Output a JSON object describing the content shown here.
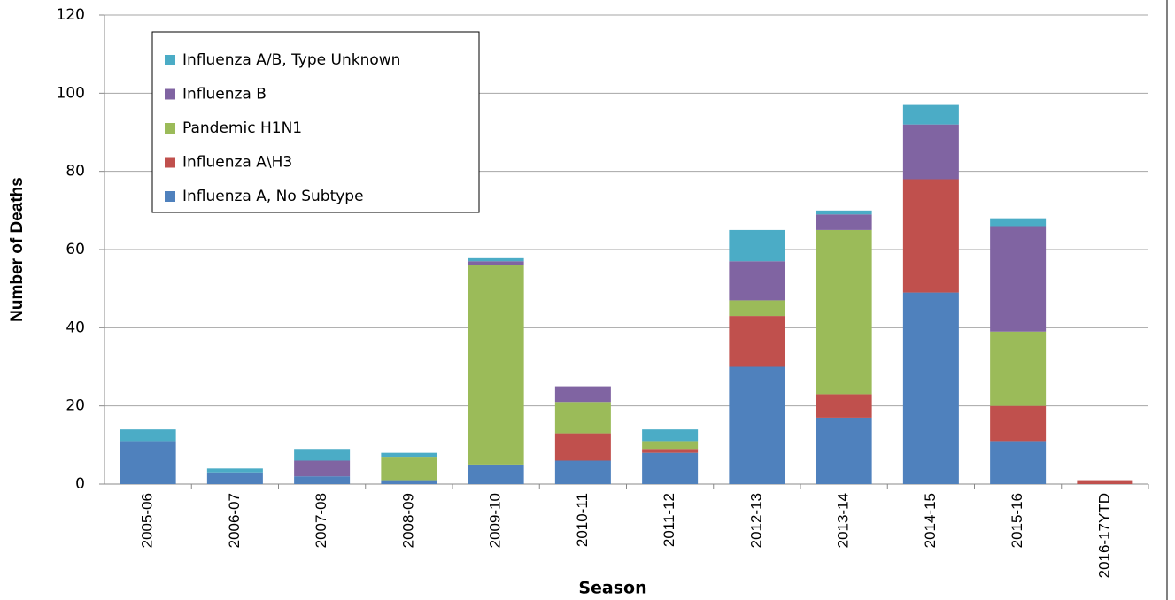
{
  "chart_data": {
    "type": "stacked-bar",
    "x_label": "Season",
    "y_label": "Number of Deaths",
    "categories": [
      "2005-06",
      "2006-07",
      "2007-08",
      "2008-09",
      "2009-10",
      "2010-11",
      "2011-12",
      "2012-13",
      "2013-14",
      "2014-15",
      "2015-16",
      "2016-17YTD"
    ],
    "series": [
      {
        "name": "Influenza A, No Subtype",
        "color": "#4f81bd",
        "values": [
          11,
          3,
          2,
          1,
          5,
          6,
          8,
          30,
          17,
          49,
          11,
          0
        ]
      },
      {
        "name": "Influenza A\\H3",
        "color": "#c0504d",
        "values": [
          0,
          0,
          0,
          0,
          0,
          7,
          1,
          13,
          6,
          29,
          9,
          1
        ]
      },
      {
        "name": "Pandemic H1N1",
        "color": "#9bbb59",
        "values": [
          0,
          0,
          0,
          6,
          51,
          8,
          2,
          4,
          42,
          0,
          19,
          0
        ]
      },
      {
        "name": "Influenza B",
        "color": "#8064a2",
        "values": [
          0,
          0,
          4,
          0,
          1,
          4,
          0,
          10,
          4,
          14,
          27,
          0
        ]
      },
      {
        "name": "Influenza A/B, Type Unknown",
        "color": "#4bacc6",
        "values": [
          3,
          1,
          3,
          1,
          1,
          0,
          3,
          8,
          1,
          5,
          2,
          0
        ]
      }
    ],
    "ylim": [
      0,
      120
    ],
    "yticks": [
      0,
      20,
      40,
      60,
      80,
      100,
      120
    ],
    "grid": true,
    "legend": "upper left"
  }
}
